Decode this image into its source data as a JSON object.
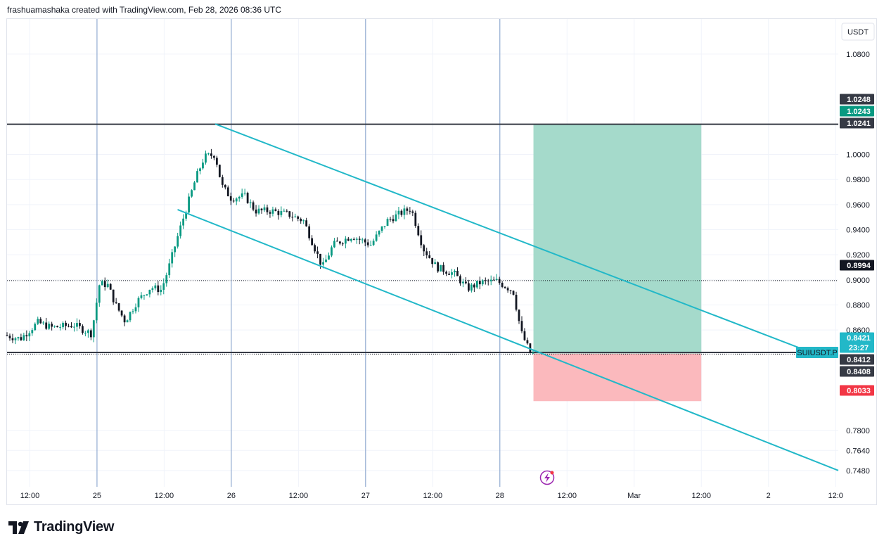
{
  "header": {
    "text": "frashuamashaka created with TradingView.com, Feb 28, 2026 08:36 UTC"
  },
  "footer": {
    "brand": "TradingView"
  },
  "colors": {
    "up": "#089981",
    "down": "#131722",
    "channel": "#22b8c8",
    "target_zone": "#a5dacb",
    "stop_zone": "#fbb9bd",
    "badge_dark": "#363a45",
    "badge_green": "#089981",
    "badge_red": "#f23645",
    "badge_cyan": "#22b8c8"
  },
  "chart_data": {
    "type": "candlestick",
    "symbol": "SUIUSDT.P",
    "currency": "USDT",
    "ylim": [
      0.735,
      1.108
    ],
    "y_ticks": [
      1.08,
      1.0,
      0.98,
      0.96,
      0.94,
      0.92,
      0.9,
      0.88,
      0.86,
      0.78,
      0.764,
      0.748
    ],
    "y_tick_labels": [
      "1.0800",
      "1.0000",
      "0.9800",
      "0.9600",
      "0.9400",
      "0.9200",
      "0.9000",
      "0.8800",
      "0.8600",
      "0.7800",
      "0.7640",
      "0.7480"
    ],
    "x_ticks": [
      {
        "label": "12:00",
        "day": 0
      },
      {
        "label": "25",
        "day": 0.5
      },
      {
        "label": "12:00",
        "day": 1
      },
      {
        "label": "26",
        "day": 1.5
      },
      {
        "label": "12:00",
        "day": 2
      },
      {
        "label": "27",
        "day": 2.5
      },
      {
        "label": "12:00",
        "day": 3
      },
      {
        "label": "28",
        "day": 3.5
      },
      {
        "label": "12:00",
        "day": 4
      },
      {
        "label": "Mar",
        "day": 4.5
      },
      {
        "label": "12:00",
        "day": 5
      },
      {
        "label": "2",
        "day": 5.5
      },
      {
        "label": "12:0",
        "day": 6
      }
    ],
    "x_unit": "days since Feb 24 12:00 UTC",
    "xlim": [
      -0.17,
      6.02
    ],
    "day_separators": [
      0.5,
      1.5,
      2.5,
      3.5
    ],
    "candle_anchors": [
      [
        -0.17,
        0.856
      ],
      [
        -0.05,
        0.853
      ],
      [
        0.08,
        0.866
      ],
      [
        0.18,
        0.862
      ],
      [
        0.35,
        0.864
      ],
      [
        0.48,
        0.857
      ],
      [
        0.54,
        0.897
      ],
      [
        0.6,
        0.896
      ],
      [
        0.66,
        0.88
      ],
      [
        0.73,
        0.867
      ],
      [
        0.82,
        0.883
      ],
      [
        0.92,
        0.894
      ],
      [
        1.0,
        0.892
      ],
      [
        1.05,
        0.908
      ],
      [
        1.12,
        0.934
      ],
      [
        1.18,
        0.955
      ],
      [
        1.26,
        0.982
      ],
      [
        1.32,
        0.998
      ],
      [
        1.4,
        1.0
      ],
      [
        1.45,
        0.975
      ],
      [
        1.52,
        0.965
      ],
      [
        1.62,
        0.967
      ],
      [
        1.7,
        0.955
      ],
      [
        1.82,
        0.955
      ],
      [
        1.95,
        0.952
      ],
      [
        2.06,
        0.947
      ],
      [
        2.2,
        0.91
      ],
      [
        2.28,
        0.928
      ],
      [
        2.42,
        0.935
      ],
      [
        2.56,
        0.928
      ],
      [
        2.68,
        0.947
      ],
      [
        2.78,
        0.953
      ],
      [
        2.86,
        0.957
      ],
      [
        2.95,
        0.925
      ],
      [
        3.05,
        0.91
      ],
      [
        3.18,
        0.905
      ],
      [
        3.28,
        0.893
      ],
      [
        3.38,
        0.898
      ],
      [
        3.5,
        0.899
      ],
      [
        3.62,
        0.891
      ],
      [
        3.68,
        0.858
      ],
      [
        3.75,
        0.841
      ]
    ],
    "price_lines": [
      {
        "price": 1.0241,
        "label": "1.0241",
        "style": "solid-dark"
      },
      {
        "price": 0.8994,
        "label": "0.8994",
        "style": "dotted"
      },
      {
        "price": 0.8421,
        "label": "0.8421",
        "style": "solid-dark"
      },
      {
        "price": 0.8408,
        "label": "0.8408",
        "style": "dotted"
      }
    ],
    "price_badges": [
      {
        "label": "1.0248",
        "price": 1.0248,
        "color": "badge_dark"
      },
      {
        "label": "1.0243",
        "price": 1.0243,
        "color": "badge_green"
      },
      {
        "label": "1.0241",
        "price": 1.0241,
        "color": "badge_dark"
      },
      {
        "label": "0.8994",
        "price": 0.8994,
        "color": "badge_black"
      },
      {
        "label": "0.8421",
        "price": 0.8421,
        "color": "badge_cyan"
      },
      {
        "label": "23:27",
        "price": 0.8421,
        "color": "badge_cyan"
      },
      {
        "label": "0.8412",
        "price": 0.8412,
        "color": "badge_dark"
      },
      {
        "label": "0.8408",
        "price": 0.8408,
        "color": "badge_dark"
      },
      {
        "label": "0.8033",
        "price": 0.8033,
        "color": "badge_red"
      }
    ],
    "symbol_tag": "SUIUSDT.P",
    "countdown": "23:27",
    "position": {
      "entry": 0.8412,
      "target": 1.0243,
      "stop": 0.8033,
      "start_day": 3.75,
      "end_day": 5.0
    },
    "channel": {
      "upper": [
        [
          1.38,
          1.0243
        ],
        [
          5.82,
          0.8421
        ]
      ],
      "lower": [
        [
          1.1,
          0.956
        ],
        [
          6.02,
          0.748
        ]
      ]
    }
  }
}
